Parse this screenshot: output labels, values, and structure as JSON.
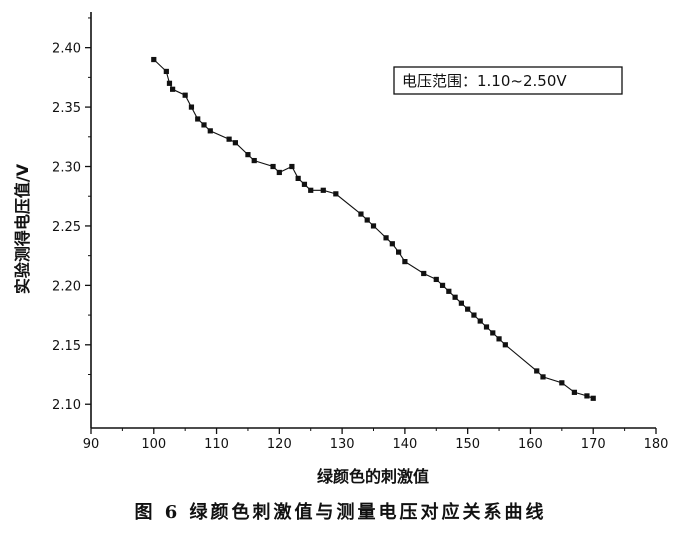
{
  "caption": "图 6 绿颜色刺激值与测量电压对应关系曲线",
  "chart_data": {
    "type": "line",
    "xlabel": "绿颜色的刺激值",
    "ylabel": "实验测得电压值/V",
    "xlim": [
      90,
      180
    ],
    "ylim": [
      2.08,
      2.43
    ],
    "x_ticks": [
      "90",
      "100",
      "110",
      "120",
      "130",
      "140",
      "150",
      "160",
      "170",
      "180"
    ],
    "y_ticks": [
      "2.10",
      "2.15",
      "2.20",
      "2.25",
      "2.30",
      "2.35",
      "2.40"
    ],
    "annotation": "电压范围：1.10~2.50V",
    "grid": false,
    "marker": "square",
    "series": [
      {
        "x": [
          100,
          102,
          102.5,
          103,
          105,
          106,
          107,
          108,
          109,
          112,
          113,
          115,
          116,
          119,
          120,
          122,
          123,
          124,
          125,
          127,
          129,
          133,
          134,
          135,
          137,
          138,
          139,
          140,
          143,
          145,
          146,
          147,
          148,
          149,
          150,
          151,
          152,
          153,
          154,
          155,
          156,
          161,
          162,
          165,
          167,
          169,
          170
        ],
        "y": [
          2.39,
          2.38,
          2.37,
          2.365,
          2.36,
          2.35,
          2.34,
          2.335,
          2.33,
          2.323,
          2.32,
          2.31,
          2.305,
          2.3,
          2.295,
          2.3,
          2.29,
          2.285,
          2.28,
          2.28,
          2.277,
          2.26,
          2.255,
          2.25,
          2.24,
          2.235,
          2.228,
          2.22,
          2.21,
          2.205,
          2.2,
          2.195,
          2.19,
          2.185,
          2.18,
          2.175,
          2.17,
          2.165,
          2.16,
          2.155,
          2.15,
          2.128,
          2.123,
          2.118,
          2.11,
          2.107,
          2.105
        ]
      }
    ]
  }
}
